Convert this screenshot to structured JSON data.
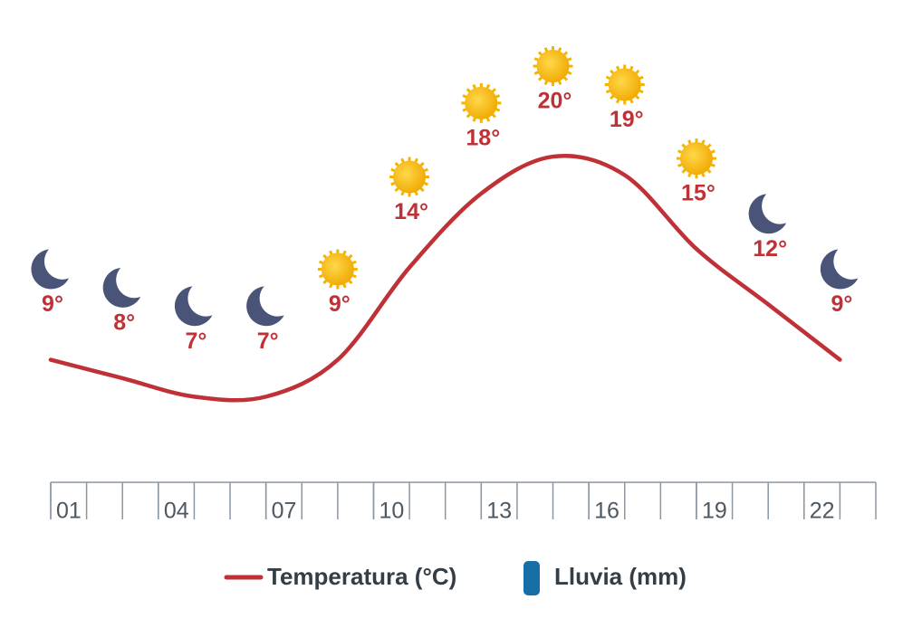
{
  "chart_data": {
    "type": "line",
    "x": [
      1,
      3,
      5,
      7,
      9,
      11,
      13,
      15,
      17,
      19,
      21,
      23
    ],
    "series": [
      {
        "name": "Temperatura (°C)",
        "color": "#bf3136",
        "values": [
          9,
          8,
          7,
          7,
          9,
          14,
          18,
          20,
          19,
          15,
          12,
          9
        ],
        "value_labels": [
          "9°",
          "8°",
          "7°",
          "7°",
          "9°",
          "14°",
          "18°",
          "20°",
          "19°",
          "15°",
          "12°",
          "9°"
        ],
        "icons": [
          "moon",
          "moon",
          "moon",
          "moon",
          "sun",
          "sun",
          "sun",
          "sun",
          "sun",
          "sun",
          "moon",
          "moon"
        ]
      }
    ],
    "legend_extra": [
      {
        "name": "Lluvia (mm)",
        "color": "#1670a6"
      }
    ],
    "xlim": [
      1,
      24
    ],
    "xticks": [
      {
        "value": 1,
        "label": "01"
      },
      {
        "value": 4,
        "label": "04"
      },
      {
        "value": 7,
        "label": "07"
      },
      {
        "value": 10,
        "label": "10"
      },
      {
        "value": 13,
        "label": "13"
      },
      {
        "value": 16,
        "label": "16"
      },
      {
        "value": 19,
        "label": "19"
      },
      {
        "value": 22,
        "label": "22"
      }
    ],
    "xminorticks": [
      1,
      2,
      3,
      4,
      5,
      6,
      7,
      8,
      9,
      10,
      11,
      12,
      13,
      14,
      15,
      16,
      17,
      18,
      19,
      20,
      21,
      22,
      23,
      24
    ],
    "ylim": [
      3,
      27.5
    ]
  }
}
